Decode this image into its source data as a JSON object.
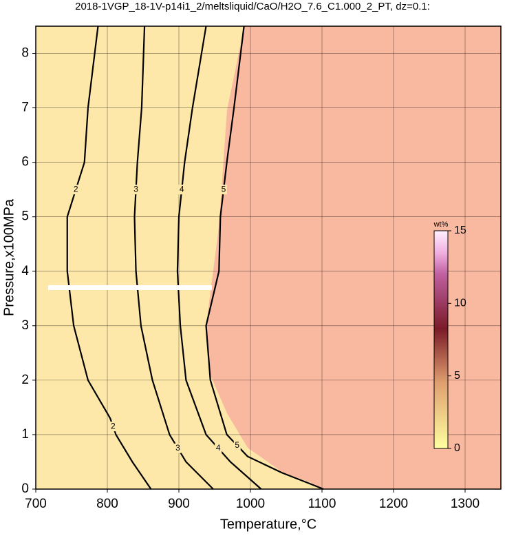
{
  "chart_data": {
    "type": "contour",
    "title": "2018-1VGP_18-1V-p14i1_2/meltsliquid/CaO/H2O_7.6_C1.000_2_PT, dz=0.1:",
    "x_label": "Temperature,°C",
    "y_label": "Pressure,x100MPa",
    "xlim": [
      700,
      1350
    ],
    "xticks": [
      700,
      800,
      900,
      1000,
      1100,
      1200,
      1300
    ],
    "ylim": [
      0,
      8.5
    ],
    "yticks": [
      0,
      1,
      2,
      3,
      4,
      5,
      6,
      7,
      8
    ],
    "grid": true,
    "contours": [
      {
        "level": 2,
        "color": "#000000",
        "x": [
          787,
          773,
          768,
          744,
          744,
          753,
          773,
          804,
          812,
          835,
          861
        ],
        "y": [
          8.5,
          7,
          6,
          5,
          4,
          3,
          2,
          1.3,
          1,
          0.5,
          0
        ]
      },
      {
        "level": 3,
        "color": "#000000",
        "x": [
          852,
          848,
          842,
          838,
          840,
          847,
          863,
          887,
          910,
          948
        ],
        "y": [
          8.5,
          7,
          6,
          5,
          4,
          3,
          2,
          1,
          0.5,
          0
        ]
      },
      {
        "level": 4,
        "color": "#000000",
        "x": [
          938,
          919,
          908,
          900,
          898,
          902,
          910,
          938,
          972,
          1015
        ],
        "y": [
          8.5,
          7,
          6,
          5,
          4,
          3,
          2,
          1,
          0.5,
          0
        ]
      },
      {
        "level": 5,
        "color": "#000000",
        "x": [
          991,
          977,
          967,
          958,
          956,
          938,
          944,
          967,
          996,
          1044,
          1083,
          1102
        ],
        "y": [
          8.5,
          7,
          6,
          5,
          4,
          3,
          2,
          1,
          0.6,
          0.3,
          0.1,
          0
        ]
      }
    ],
    "colorbar": {
      "label": "wt%",
      "lim": [
        0,
        15
      ],
      "ticks": [
        0,
        5,
        10,
        15
      ]
    }
  }
}
